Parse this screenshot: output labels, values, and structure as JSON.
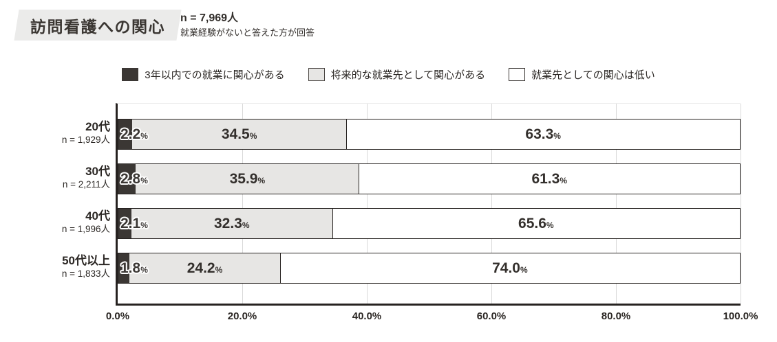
{
  "header": {
    "title": "訪問看護への関心",
    "n_total": "n = 7,969人",
    "subtitle": "就業経験がないと答えた方が回答"
  },
  "legend": [
    {
      "label": "3年以内での就業に関心がある",
      "color": "#3b3734",
      "swatch": "dark"
    },
    {
      "label": "将来的な就業先として関心がある",
      "color": "#e7e6e4",
      "swatch": "light"
    },
    {
      "label": "就業先としての関心は低い",
      "color": "#ffffff",
      "swatch": "white"
    }
  ],
  "chart_data": {
    "type": "bar",
    "stacked": true,
    "orientation": "horizontal",
    "title": "訪問看護への関心",
    "categories": [
      "20代",
      "30代",
      "40代",
      "50代以上"
    ],
    "category_n": [
      "n = 1,929人",
      "n = 2,211人",
      "n = 1,996人",
      "n = 1,833人"
    ],
    "series": [
      {
        "name": "3年以内での就業に関心がある",
        "values": [
          2.2,
          2.8,
          2.1,
          1.8
        ]
      },
      {
        "name": "将来的な就業先として関心がある",
        "values": [
          34.5,
          35.9,
          32.3,
          24.2
        ]
      },
      {
        "name": "就業先としての関心は低い",
        "values": [
          63.3,
          61.3,
          65.6,
          74.0
        ]
      }
    ],
    "value_labels": [
      [
        "2.2",
        "34.5",
        "63.3"
      ],
      [
        "2.8",
        "35.9",
        "61.3"
      ],
      [
        "2.1",
        "32.3",
        "65.6"
      ],
      [
        "1.8",
        "24.2",
        "74.0"
      ]
    ],
    "unit_suffix": "%",
    "x_ticks": [
      "0.0%",
      "20.0%",
      "40.0%",
      "60.0%",
      "80.0%",
      "100.0%"
    ],
    "xlim": [
      0,
      100
    ],
    "grid": true,
    "legend_position": "top"
  },
  "colors": {
    "series_dark": "#3b3734",
    "series_light": "#e7e6e4",
    "series_white": "#ffffff",
    "bar_border": "#262220",
    "gridline": "#d9d9d9",
    "title_bg": "#ebebea",
    "text": "#332f2c"
  }
}
